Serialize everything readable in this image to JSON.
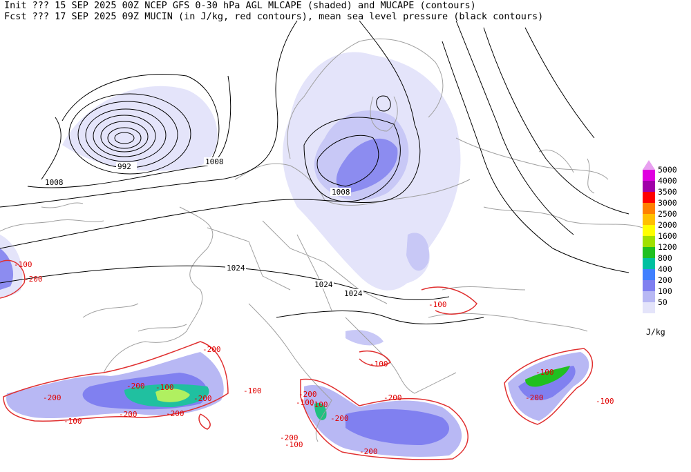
{
  "header": {
    "line1": "Init  ??? 15 SEP 2025 00Z  NCEP GFS 0-30 hPa AGL MLCAPE (shaded) and MUCAPE (contours)",
    "line2": "Fcst ??? 17 SEP 2025 09Z  MUCIN (in J/kg, red contours), mean sea level pressure (black contours)"
  },
  "isobar_labels": [
    "992",
    "1008",
    "1008",
    "1008",
    "1024",
    "1024",
    "1024"
  ],
  "cin_labels": [
    "-100",
    "-200",
    "-100",
    "-200",
    "-100",
    "-200",
    "-100",
    "-200",
    "-100",
    "-200",
    "-100",
    "-200",
    "-100",
    "-200",
    "-200",
    "-200",
    "-100",
    "-200",
    "-100",
    "-200",
    "-100",
    "-200",
    "-100",
    "-200"
  ],
  "legend": {
    "unit": "J/kg",
    "levels": [
      {
        "label": "5000",
        "color": "#e8a0f0"
      },
      {
        "label": "4000",
        "color": "#e000e0"
      },
      {
        "label": "3500",
        "color": "#a000a8"
      },
      {
        "label": "3000",
        "color": "#ff0000"
      },
      {
        "label": "2500",
        "color": "#ff8000"
      },
      {
        "label": "2000",
        "color": "#ffc000"
      },
      {
        "label": "1600",
        "color": "#ffff00"
      },
      {
        "label": "1200",
        "color": "#a0e000"
      },
      {
        "label": "800",
        "color": "#20c020"
      },
      {
        "label": "400",
        "color": "#00c0a0"
      },
      {
        "label": "200",
        "color": "#4080ff"
      },
      {
        "label": "100",
        "color": "#8080f0"
      },
      {
        "label": "50",
        "color": "#b8b8f4"
      },
      {
        "label": "",
        "color": "#e4e4fa"
      }
    ]
  }
}
